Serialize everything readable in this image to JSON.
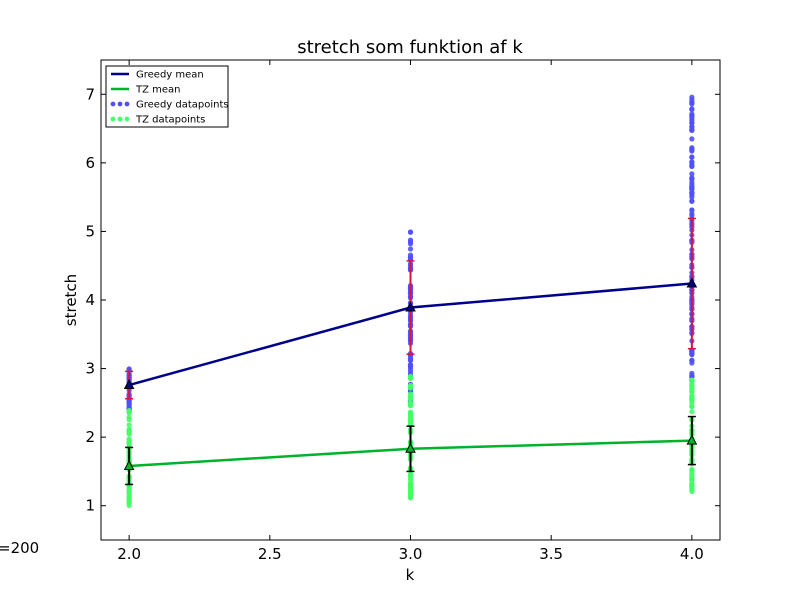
{
  "chart_data": {
    "type": "line",
    "title": "stretch som funktion af k",
    "xlabel": "k",
    "ylabel": "stretch",
    "xlim": [
      1.9,
      4.1
    ],
    "ylim": [
      0.5,
      7.5
    ],
    "xticks": [
      "2.0",
      "2.5",
      "3.0",
      "3.5",
      "4.0"
    ],
    "yticks": [
      "1",
      "2",
      "3",
      "4",
      "5",
      "6",
      "7"
    ],
    "side_note": "=200",
    "legend_position": "top-left",
    "grid": false,
    "series": [
      {
        "name": "Greedy mean",
        "kind": "line",
        "color": "#00008b",
        "x": [
          2.0,
          3.0,
          4.0
        ],
        "y": [
          2.76,
          3.89,
          4.24
        ],
        "error": [
          0.2,
          0.68,
          0.95
        ],
        "error_color": "#dc143c"
      },
      {
        "name": "TZ mean",
        "kind": "line",
        "color": "#00b22c",
        "x": [
          2.0,
          3.0,
          4.0
        ],
        "y": [
          1.58,
          1.83,
          1.95
        ],
        "error": [
          0.27,
          0.33,
          0.35
        ],
        "error_color": "#000000"
      },
      {
        "name": "Greedy datapoints",
        "kind": "scatter",
        "color": "#5050ff",
        "points": [
          {
            "x": 2.0,
            "range": [
              2.3,
              3.0
            ],
            "n": 40
          },
          {
            "x": 3.0,
            "range": [
              2.5,
              5.0
            ],
            "n": 90
          },
          {
            "x": 4.0,
            "range": [
              2.8,
              7.0
            ],
            "n": 130
          }
        ]
      },
      {
        "name": "TZ datapoints",
        "kind": "scatter",
        "color": "#44ff66",
        "points": [
          {
            "x": 2.0,
            "range": [
              1.0,
              2.4
            ],
            "n": 60
          },
          {
            "x": 3.0,
            "range": [
              1.1,
              2.9
            ],
            "n": 70
          },
          {
            "x": 4.0,
            "range": [
              1.2,
              2.9
            ],
            "n": 70
          }
        ]
      }
    ]
  }
}
